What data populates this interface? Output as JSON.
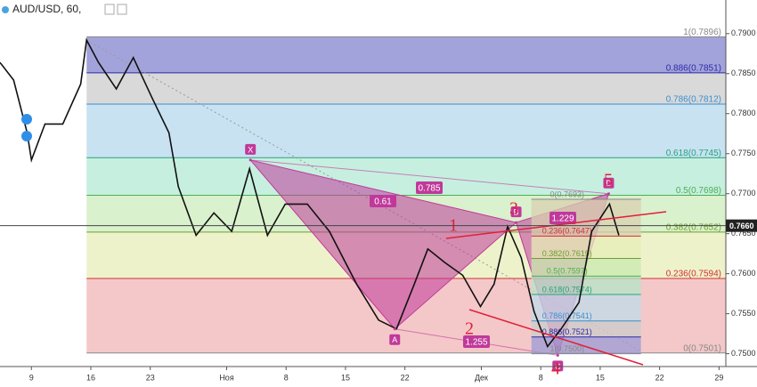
{
  "chart_data": {
    "type": "line",
    "title": "AUD/USD, 60,",
    "color": "#111111",
    "x": [
      -3.7,
      -2.1,
      -0.5,
      0,
      1.6,
      3.7,
      5.8,
      6.5,
      7.9,
      10,
      12,
      14.2,
      16.2,
      17.3,
      19.4,
      21.5,
      23.6,
      25.7,
      27.8,
      29.9,
      32.5,
      35.1,
      38.3,
      40.9,
      43,
      45.1,
      46.7,
      48.7,
      50.8,
      52.9,
      54.5,
      56.1,
      57.7,
      59.2,
      60.8,
      62.4,
      64.5,
      66,
      68.1,
      69.2
    ],
    "values": [
      0.7864,
      0.7842,
      0.7776,
      0.7742,
      0.7787,
      0.7787,
      0.7837,
      0.7892,
      0.7864,
      0.7831,
      0.787,
      0.782,
      0.7776,
      0.7709,
      0.7648,
      0.7676,
      0.7653,
      0.7731,
      0.7648,
      0.7687,
      0.7687,
      0.7653,
      0.7587,
      0.7542,
      0.7531,
      0.7587,
      0.7631,
      0.7614,
      0.7598,
      0.7559,
      0.7587,
      0.7659,
      0.762,
      0.7553,
      0.7509,
      0.7531,
      0.7564,
      0.7653,
      0.7687,
      0.7648
    ],
    "xlim": [
      -3.7,
      81.8
    ],
    "ylim": [
      0.7484,
      0.7942
    ],
    "xticks": [
      {
        "value": 0,
        "label": "9"
      },
      {
        "value": 7,
        "label": "16"
      },
      {
        "value": 14,
        "label": "23"
      },
      {
        "value": 23,
        "label": "Ноя"
      },
      {
        "value": 30,
        "label": "8"
      },
      {
        "value": 37,
        "label": "15"
      },
      {
        "value": 44,
        "label": "22"
      },
      {
        "value": 53,
        "label": "Дек"
      },
      {
        "value": 60,
        "label": "8"
      },
      {
        "value": 67,
        "label": "15"
      },
      {
        "value": 74,
        "label": "22"
      },
      {
        "value": 81,
        "label": "29"
      }
    ],
    "yticks": [
      {
        "value": 0.75,
        "label": "0.7500"
      },
      {
        "value": 0.755,
        "label": "0.7550"
      },
      {
        "value": 0.76,
        "label": "0.7600"
      },
      {
        "value": 0.765,
        "label": "0.7650"
      },
      {
        "value": 0.77,
        "label": "0.7700"
      },
      {
        "value": 0.775,
        "label": "0.7750"
      },
      {
        "value": 0.78,
        "label": "0.7800"
      },
      {
        "value": 0.785,
        "label": "0.7850"
      },
      {
        "value": 0.79,
        "label": "0.7900"
      }
    ],
    "current_price": {
      "value": 0.766,
      "label": "0.7660"
    },
    "fib": {
      "start": 6.5,
      "levels": [
        {
          "label": "1(0.7896)",
          "value": 0.7896,
          "color": "#888888",
          "fill": "#a3a3db"
        },
        {
          "label": "0.886(0.7851)",
          "value": 0.7851,
          "color": "#2a2aa8",
          "fill": "#d9d9d9"
        },
        {
          "label": "0.786(0.7812)",
          "value": 0.7812,
          "color": "#3a8fd0",
          "fill": "#c8e2f2"
        },
        {
          "label": "0.618(0.7745)",
          "value": 0.7745,
          "color": "#26a37a",
          "fill": "#c6efe0"
        },
        {
          "label": "0.5(0.7698)",
          "value": 0.7698,
          "color": "#4caf50",
          "fill": "#d9f1cc"
        },
        {
          "label": "0.382(0.7652)",
          "value": 0.7652,
          "color": "#6e9e2e",
          "fill": "#eef2cb"
        },
        {
          "label": "0.236(0.7594)",
          "value": 0.7594,
          "color": "#d32f2f",
          "fill": "#f4c8c8"
        },
        {
          "label": "0(0.7501)",
          "value": 0.7501,
          "color": "#888888",
          "fill": "none"
        }
      ]
    },
    "fib2": {
      "start": 58.9,
      "end": 71.8,
      "levels": [
        {
          "label": "0(0.7693)",
          "value": 0.7693,
          "color": "#888888",
          "fill": "#d8cfb0"
        },
        {
          "label": "0.236(0.7647)",
          "value": 0.7647,
          "color": "#d32f2f",
          "fill": "#e6eeb8"
        },
        {
          "label": "0.382(0.7619)",
          "value": 0.7619,
          "color": "#6e9e2e",
          "fill": "#c9eab0"
        },
        {
          "label": "0.5(0.7597)",
          "value": 0.7597,
          "color": "#4caf50",
          "fill": "#b6e6c8"
        },
        {
          "label": "0.618(0.7574)",
          "value": 0.7574,
          "color": "#26a37a",
          "fill": "#c0dcea"
        },
        {
          "label": "0.786(0.7541)",
          "value": 0.7541,
          "color": "#3a8fd0",
          "fill": "#cccccc"
        },
        {
          "label": "0.886(0.7521)",
          "value": 0.7521,
          "color": "#2a2aa8",
          "fill": "#9c9cd6"
        },
        {
          "label": "1(0.7500)",
          "value": 0.75,
          "color": "#888888",
          "fill": "none"
        }
      ]
    },
    "pattern": {
      "color": "#c0399a",
      "points": [
        {
          "label": "X",
          "x": 25.8,
          "y": 0.7742
        },
        {
          "label": "A",
          "x": 42.8,
          "y": 0.7531
        },
        {
          "label": "B",
          "x": 57.1,
          "y": 0.7664
        },
        {
          "label": "C",
          "x": 62,
          "y": 0.7498
        },
        {
          "label": "D",
          "x": 68,
          "y": 0.77
        }
      ],
      "ratios": [
        "0.61",
        "0.785",
        "1.229",
        "1.255"
      ]
    },
    "waves": {
      "color": "#e0203a",
      "labels": [
        "1",
        "2",
        "3",
        "4",
        "5"
      ]
    }
  }
}
